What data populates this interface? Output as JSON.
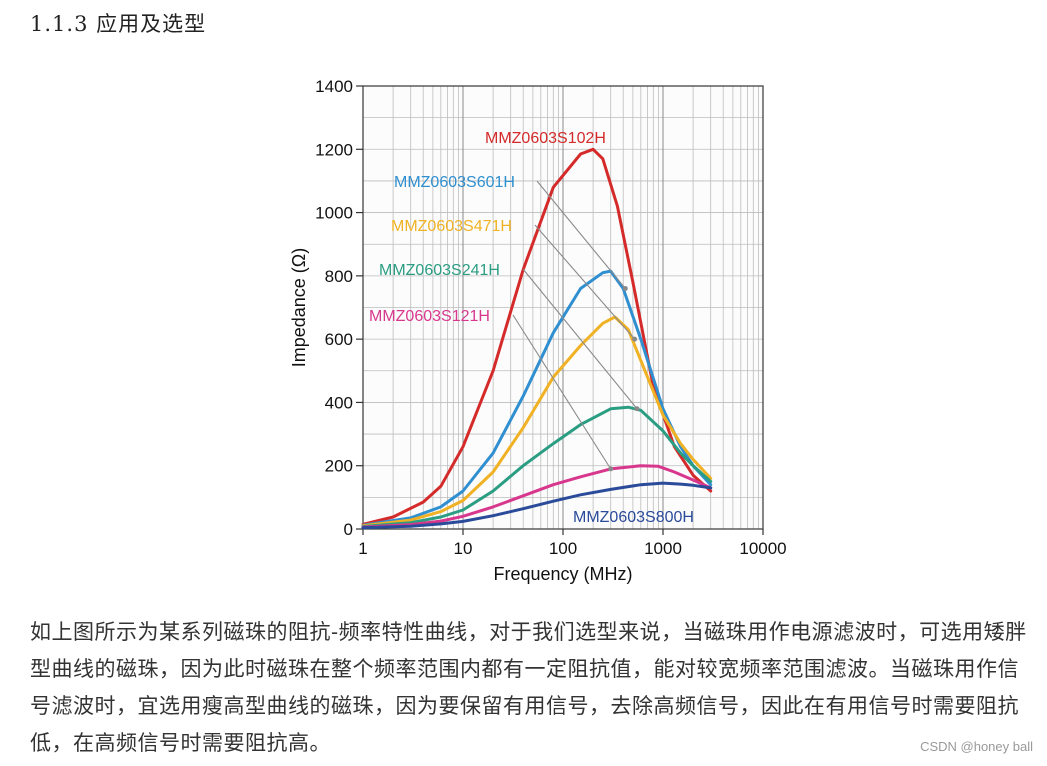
{
  "section": {
    "heading": "1.1.3 应用及选型"
  },
  "chart_data": {
    "type": "line",
    "xlabel": "Frequency (MHz)",
    "ylabel": "Impedance (Ω)",
    "xscale": "log",
    "xlim": [
      1,
      10000
    ],
    "ylim": [
      0,
      1400
    ],
    "x_ticks": [
      "1",
      "10",
      "100",
      "1000",
      "10000"
    ],
    "y_ticks": [
      "0",
      "200",
      "400",
      "600",
      "800",
      "1000",
      "1200",
      "1400"
    ],
    "grid": true,
    "series": [
      {
        "name": "MMZ0603S102H",
        "color": "#d42a2a",
        "points": [
          [
            1,
            15
          ],
          [
            2,
            38
          ],
          [
            4,
            85
          ],
          [
            6,
            135
          ],
          [
            10,
            260
          ],
          [
            20,
            500
          ],
          [
            40,
            820
          ],
          [
            80,
            1080
          ],
          [
            150,
            1185
          ],
          [
            200,
            1200
          ],
          [
            250,
            1170
          ],
          [
            350,
            1020
          ],
          [
            500,
            780
          ],
          [
            800,
            450
          ],
          [
            1300,
            260
          ],
          [
            2000,
            170
          ],
          [
            3000,
            120
          ]
        ]
      },
      {
        "name": "MMZ0603S601H",
        "color": "#2f8fd0",
        "points": [
          [
            1,
            12
          ],
          [
            3,
            35
          ],
          [
            6,
            70
          ],
          [
            10,
            120
          ],
          [
            20,
            240
          ],
          [
            40,
            420
          ],
          [
            80,
            620
          ],
          [
            150,
            760
          ],
          [
            250,
            810
          ],
          [
            300,
            815
          ],
          [
            400,
            760
          ],
          [
            600,
            600
          ],
          [
            1000,
            380
          ],
          [
            1500,
            260
          ],
          [
            2000,
            200
          ],
          [
            3000,
            140
          ]
        ]
      },
      {
        "name": "MMZ0603S471H",
        "color": "#f0b224",
        "points": [
          [
            1,
            10
          ],
          [
            3,
            28
          ],
          [
            6,
            55
          ],
          [
            10,
            90
          ],
          [
            20,
            180
          ],
          [
            40,
            320
          ],
          [
            80,
            480
          ],
          [
            150,
            580
          ],
          [
            250,
            650
          ],
          [
            330,
            670
          ],
          [
            450,
            630
          ],
          [
            700,
            480
          ],
          [
            1000,
            360
          ],
          [
            1500,
            270
          ],
          [
            2000,
            220
          ],
          [
            3000,
            160
          ]
        ]
      },
      {
        "name": "MMZ0603S241H",
        "color": "#2a9d82",
        "points": [
          [
            1,
            8
          ],
          [
            3,
            20
          ],
          [
            6,
            38
          ],
          [
            10,
            60
          ],
          [
            20,
            120
          ],
          [
            40,
            200
          ],
          [
            80,
            270
          ],
          [
            150,
            330
          ],
          [
            300,
            380
          ],
          [
            450,
            385
          ],
          [
            600,
            375
          ],
          [
            1000,
            310
          ],
          [
            1500,
            240
          ],
          [
            2000,
            200
          ],
          [
            3000,
            150
          ]
        ]
      },
      {
        "name": "MMZ0603S121H",
        "color": "#d8378e",
        "points": [
          [
            1,
            6
          ],
          [
            3,
            14
          ],
          [
            6,
            25
          ],
          [
            10,
            40
          ],
          [
            20,
            70
          ],
          [
            40,
            105
          ],
          [
            80,
            140
          ],
          [
            150,
            165
          ],
          [
            300,
            190
          ],
          [
            600,
            200
          ],
          [
            900,
            198
          ],
          [
            1300,
            180
          ],
          [
            2000,
            155
          ],
          [
            3000,
            130
          ]
        ]
      },
      {
        "name": "MMZ0603S800H",
        "color": "#2a4a9a",
        "points": [
          [
            1,
            4
          ],
          [
            3,
            9
          ],
          [
            6,
            16
          ],
          [
            10,
            24
          ],
          [
            20,
            42
          ],
          [
            40,
            64
          ],
          [
            80,
            88
          ],
          [
            150,
            108
          ],
          [
            300,
            125
          ],
          [
            600,
            140
          ],
          [
            1000,
            145
          ],
          [
            1500,
            142
          ],
          [
            2000,
            138
          ],
          [
            3000,
            130
          ]
        ]
      }
    ],
    "labels": [
      {
        "series": "MMZ0603S102H",
        "text": "MMZ0603S102H"
      },
      {
        "series": "MMZ0603S601H",
        "text": "MMZ0603S601H"
      },
      {
        "series": "MMZ0603S471H",
        "text": "MMZ0603S471H"
      },
      {
        "series": "MMZ0603S241H",
        "text": "MMZ0603S241H"
      },
      {
        "series": "MMZ0603S121H",
        "text": "MMZ0603S121H"
      },
      {
        "series": "MMZ0603S800H",
        "text": "MMZ0603S800H"
      }
    ]
  },
  "paragraph": {
    "text": "如上图所示为某系列磁珠的阻抗-频率特性曲线，对于我们选型来说，当磁珠用作电源滤波时，可选用矮胖型曲线的磁珠，因为此时磁珠在整个频率范围内都有一定阻抗值，能对较宽频率范围滤波。当磁珠用作信号滤波时，宜选用瘦高型曲线的磁珠，因为要保留有用信号，去除高频信号，因此在有用信号时需要阻抗低，在高频信号时需要阻抗高。"
  },
  "watermark": {
    "text": "CSDN @honey ball"
  }
}
